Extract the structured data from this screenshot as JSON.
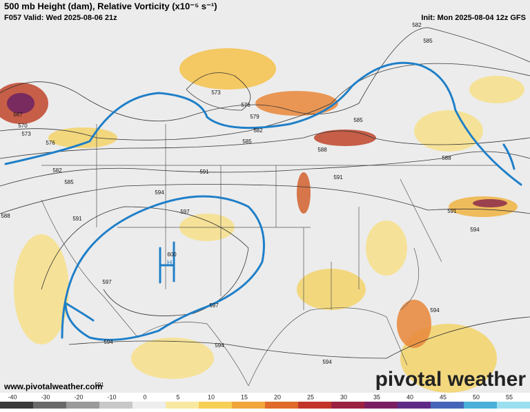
{
  "header": {
    "title": "500 mb Height (dam), Relative Vorticity (x10⁻⁵ s⁻¹)",
    "valid": "F057 Valid: Wed 2025-08-06 21z",
    "init": "Init: Mon 2025-08-04 12z GFS"
  },
  "contour_labels": [
    582,
    585,
    573,
    576,
    579,
    582,
    585,
    588,
    585,
    588,
    591,
    591,
    594,
    597,
    591,
    588,
    585,
    582,
    576,
    573,
    570,
    567,
    591,
    594,
    597,
    597,
    594,
    594,
    594,
    594,
    591,
    600
  ],
  "annotation": "H",
  "watermark": "pivotal weather",
  "url": "www.pivotalweather.com",
  "colorbar": {
    "ticks": [
      -40,
      -30,
      -20,
      -10,
      0,
      5,
      10,
      15,
      20,
      25,
      30,
      35,
      40,
      45,
      50,
      55
    ]
  }
}
